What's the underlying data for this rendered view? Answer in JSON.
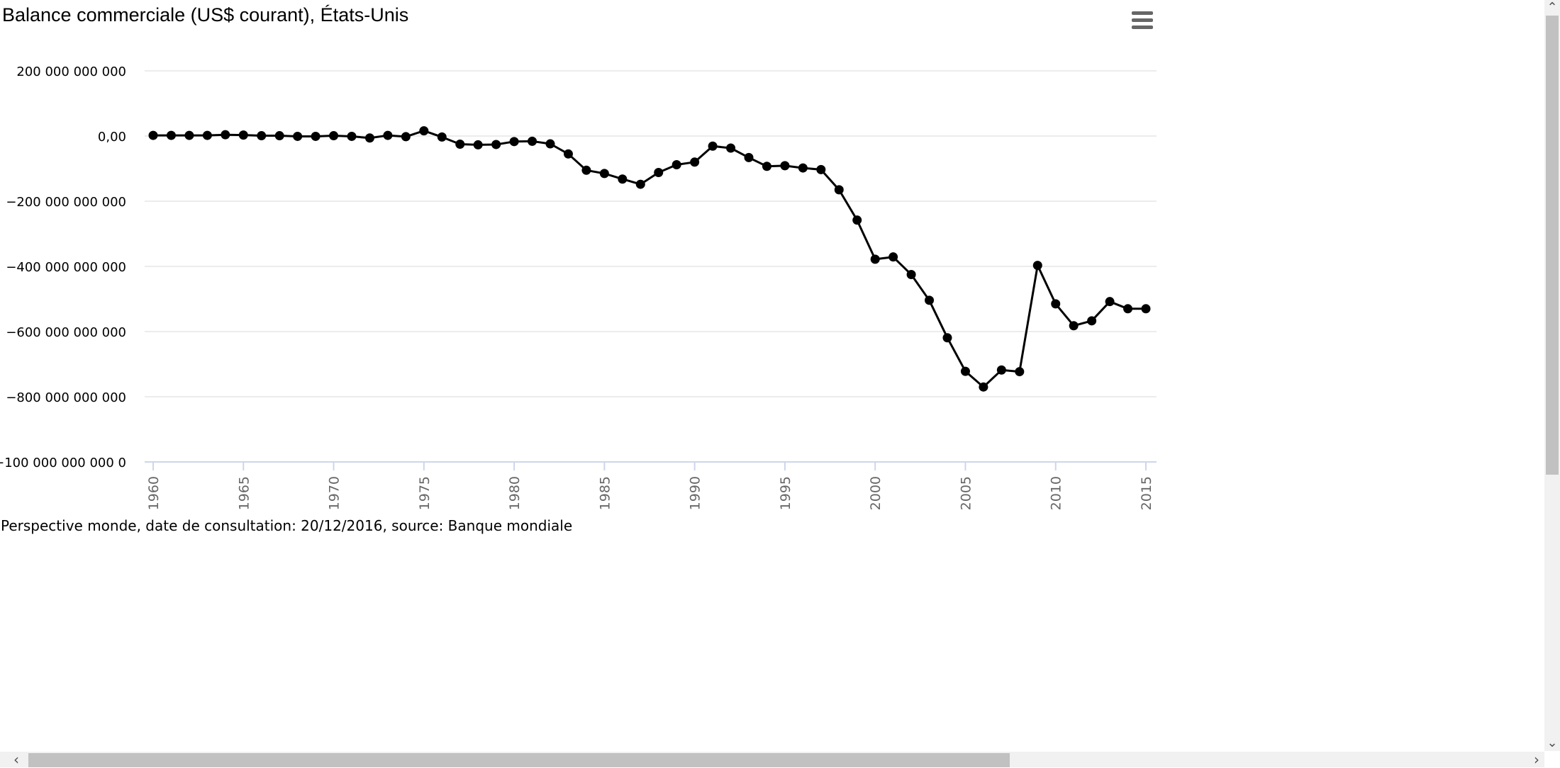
{
  "chart_data": {
    "type": "line",
    "title": "Balance commerciale (US$ courant), États-Unis",
    "credits": "Perspective monde, date de consultation: 20/12/2016, source: Banque mondiale",
    "x": [
      1960,
      1961,
      1962,
      1963,
      1964,
      1965,
      1966,
      1967,
      1968,
      1969,
      1970,
      1971,
      1972,
      1973,
      1974,
      1975,
      1976,
      1977,
      1978,
      1979,
      1980,
      1981,
      1982,
      1983,
      1984,
      1985,
      1986,
      1987,
      1988,
      1989,
      1990,
      1991,
      1992,
      1993,
      1994,
      1995,
      1996,
      1997,
      1998,
      1999,
      2000,
      2001,
      2002,
      2003,
      2004,
      2005,
      2006,
      2007,
      2008,
      2009,
      2010,
      2011,
      2012,
      2013,
      2014,
      2015
    ],
    "values": [
      2000000000,
      2000000000,
      2000000000,
      2000000000,
      4000000000,
      3000000000,
      1000000000,
      1000000000,
      -1000000000,
      -1000000000,
      1000000000,
      -1000000000,
      -6000000000,
      2000000000,
      -2000000000,
      16000000000,
      -3000000000,
      -25000000000,
      -27000000000,
      -26000000000,
      -17000000000,
      -16000000000,
      -24000000000,
      -55000000000,
      -105000000000,
      -115000000000,
      -132000000000,
      -148000000000,
      -112000000000,
      -88000000000,
      -80000000000,
      -31000000000,
      -37000000000,
      -66000000000,
      -93000000000,
      -91000000000,
      -98000000000,
      -103000000000,
      -165000000000,
      -258000000000,
      -378000000000,
      -371000000000,
      -425000000000,
      -504000000000,
      -619000000000,
      -722000000000,
      -770000000000,
      -718000000000,
      -723000000000,
      -397000000000,
      -515000000000,
      -582000000000,
      -567000000000,
      -508000000000,
      -530000000000,
      -530000000000
    ],
    "ylim": [
      -1000000000000,
      200000000000
    ],
    "y_ticks": [
      200000000000,
      0,
      -200000000000,
      -400000000000,
      -600000000000,
      -800000000000,
      -1000000000000
    ],
    "y_tick_labels": [
      "200 000 000 000",
      "0,00",
      "−200 000 000 000",
      "−400 000 000 000",
      "−600 000 000 000",
      "−800 000 000 000",
      "−100 000 000 000 0"
    ],
    "x_ticks": [
      1960,
      1965,
      1970,
      1975,
      1980,
      1985,
      1990,
      1995,
      2000,
      2005,
      2010,
      2015
    ],
    "x_tick_labels": [
      "1960",
      "1965",
      "1970",
      "1975",
      "1980",
      "1985",
      "1990",
      "1995",
      "2000",
      "2005",
      "2010",
      "2015"
    ],
    "xlabel": "",
    "ylabel": "",
    "grid": true,
    "legend": "none",
    "colors": {
      "line": "#000000",
      "grid": "#e6e6e6",
      "axis": "#ccd6eb",
      "tick_label": "#666666"
    }
  },
  "icons": {
    "menu": "hamburger-menu-icon"
  },
  "scrollbars": {
    "up_arrow": "⌃",
    "down_arrow": "⌄",
    "left_arrow": "‹",
    "right_arrow": "›"
  }
}
